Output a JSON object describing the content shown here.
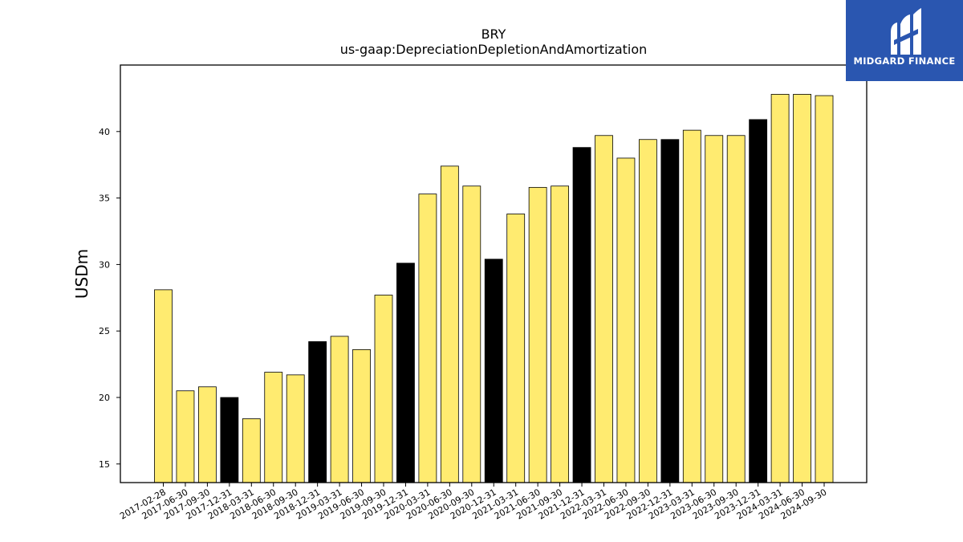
{
  "chart_data": {
    "type": "bar",
    "title": "BRY",
    "subtitle": "us-gaap:DepreciationDepletionAndAmortization",
    "xlabel": "",
    "ylabel": "USDm",
    "ylim": [
      13.6,
      45
    ],
    "yticks": [
      15,
      20,
      25,
      30,
      35,
      40
    ],
    "grid": false,
    "categories": [
      "2017-02-28",
      "2017-06-30",
      "2017-09-30",
      "2017-12-31",
      "2018-03-31",
      "2018-06-30",
      "2018-09-30",
      "2018-12-31",
      "2019-03-31",
      "2019-06-30",
      "2019-09-30",
      "2019-12-31",
      "2020-03-31",
      "2020-06-30",
      "2020-09-30",
      "2020-12-31",
      "2021-03-31",
      "2021-06-30",
      "2021-09-30",
      "2021-12-31",
      "2022-03-31",
      "2022-06-30",
      "2022-09-30",
      "2022-12-31",
      "2023-03-31",
      "2023-06-30",
      "2023-09-30",
      "2023-12-31",
      "2024-03-31",
      "2024-06-30",
      "2024-09-30"
    ],
    "values": [
      28.1,
      20.5,
      20.8,
      20.0,
      18.4,
      21.9,
      21.7,
      24.2,
      24.6,
      23.6,
      27.7,
      30.1,
      35.3,
      37.4,
      35.9,
      30.4,
      33.8,
      35.8,
      35.9,
      38.8,
      39.7,
      38.0,
      39.4,
      39.4,
      40.1,
      39.7,
      39.7,
      40.9,
      42.8,
      42.8,
      42.7
    ],
    "bar_colors": [
      "#ffeb70",
      "#ffeb70",
      "#ffeb70",
      "#000000",
      "#ffeb70",
      "#ffeb70",
      "#ffeb70",
      "#000000",
      "#ffeb70",
      "#ffeb70",
      "#ffeb70",
      "#000000",
      "#ffeb70",
      "#ffeb70",
      "#ffeb70",
      "#000000",
      "#ffeb70",
      "#ffeb70",
      "#ffeb70",
      "#000000",
      "#ffeb70",
      "#ffeb70",
      "#ffeb70",
      "#000000",
      "#ffeb70",
      "#ffeb70",
      "#ffeb70",
      "#000000",
      "#ffeb70",
      "#ffeb70",
      "#ffeb70"
    ],
    "colors": {
      "quarter": "#ffeb70",
      "year_end": "#000000",
      "edge": "#000000"
    }
  },
  "logo": {
    "text": "MIDGARD FINANCE",
    "background": "#2a56b0"
  }
}
